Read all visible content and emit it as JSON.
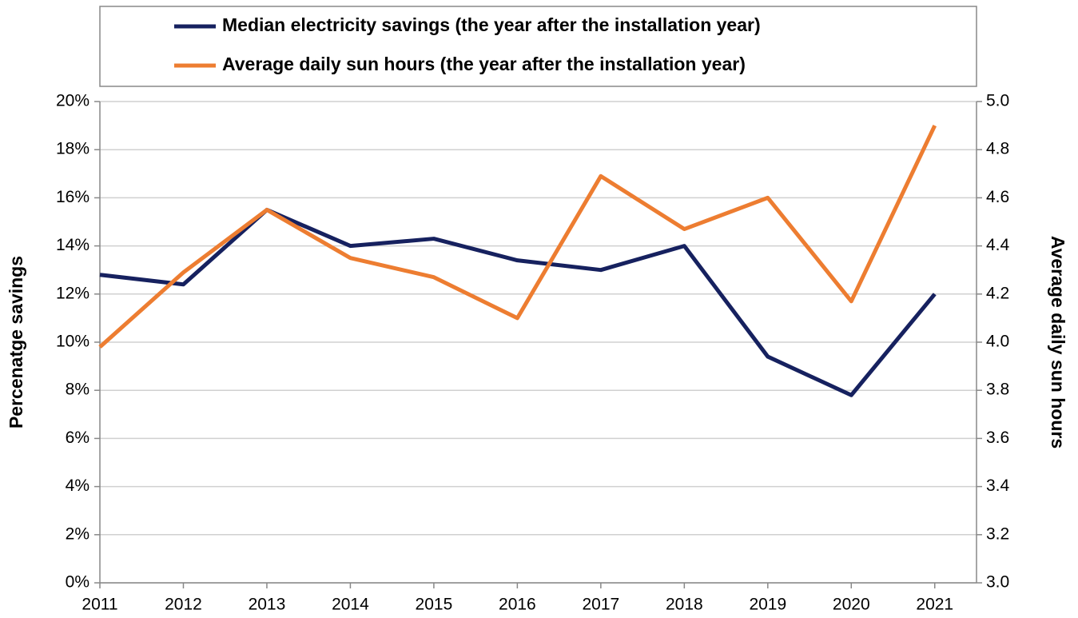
{
  "chart_data": {
    "type": "line",
    "x": [
      2011,
      2012,
      2013,
      2014,
      2015,
      2016,
      2017,
      2018,
      2019,
      2020,
      2021
    ],
    "xlim": [
      2011,
      2021.5
    ],
    "xticks": [
      2011,
      2012,
      2013,
      2014,
      2015,
      2016,
      2017,
      2018,
      2019,
      2020,
      2021
    ],
    "series": [
      {
        "name": "Median electricity savings (the year after the installation year)",
        "color": "#16215f",
        "values": [
          12.8,
          12.4,
          15.5,
          14.0,
          14.3,
          13.4,
          13.0,
          14.0,
          9.4,
          7.8,
          12.0
        ]
      },
      {
        "name": "Average daily sun hours (the year after the installation year)",
        "color": "#ed7d31",
        "axis": "y2",
        "values": [
          3.98,
          4.29,
          4.55,
          4.35,
          4.27,
          4.1,
          4.69,
          4.47,
          4.6,
          4.17,
          4.9
        ]
      }
    ],
    "ylabel": "Percenatge savings",
    "y2label": "Average daily sun hours",
    "ylim": [
      0,
      20
    ],
    "yticks": [
      {
        "value": 0,
        "label": "0%"
      },
      {
        "value": 2,
        "label": "2%"
      },
      {
        "value": 4,
        "label": "4%"
      },
      {
        "value": 6,
        "label": "6%"
      },
      {
        "value": 8,
        "label": "8%"
      },
      {
        "value": 10,
        "label": "10%"
      },
      {
        "value": 12,
        "label": "12%"
      },
      {
        "value": 14,
        "label": "14%"
      },
      {
        "value": 16,
        "label": "16%"
      },
      {
        "value": 18,
        "label": "18%"
      },
      {
        "value": 20,
        "label": "20%"
      }
    ],
    "y2lim": [
      3,
      5
    ],
    "y2ticks": [
      {
        "value": 3,
        "label": "3.0"
      },
      {
        "value": 3.2,
        "label": "3.2"
      },
      {
        "value": 3.4,
        "label": "3.4"
      },
      {
        "value": 3.6,
        "label": "3.6"
      },
      {
        "value": 3.8,
        "label": "3.8"
      },
      {
        "value": 4,
        "label": "4.0"
      },
      {
        "value": 4.2,
        "label": "4.2"
      },
      {
        "value": 4.4,
        "label": "4.4"
      },
      {
        "value": 4.6,
        "label": "4.6"
      },
      {
        "value": 4.8,
        "label": "4.8"
      },
      {
        "value": 5,
        "label": "5.0"
      }
    ],
    "grid": true,
    "legend": "top"
  }
}
